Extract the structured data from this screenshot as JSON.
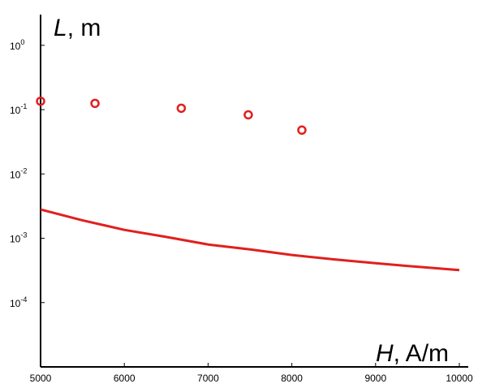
{
  "chart_data": {
    "type": "scatter",
    "title": "",
    "xlabel": {
      "var": "H",
      "unit": ", A/m"
    },
    "ylabel": {
      "var": "L",
      "unit": ", m"
    },
    "x_ticks": [
      "5000",
      "6000",
      "7000",
      "8000",
      "9000",
      "10000"
    ],
    "y_ticks": [
      {
        "value": 1,
        "base": "10",
        "exp": "0"
      },
      {
        "value": 0.1,
        "base": "10",
        "exp": "-1"
      },
      {
        "value": 0.01,
        "base": "10",
        "exp": "-2"
      },
      {
        "value": 0.001,
        "base": "10",
        "exp": "-3"
      },
      {
        "value": 0.0001,
        "base": "10",
        "exp": "-4"
      }
    ],
    "xlim": [
      5000,
      10000
    ],
    "ylim": [
      1e-05,
      3
    ],
    "yscale": "log",
    "grid": false,
    "colors": {
      "series": "#e0201e",
      "axis": "#000000"
    },
    "series": [
      {
        "kind": "scatter",
        "marker": "open-circle",
        "x": [
          5000,
          5650,
          6680,
          7480,
          8120
        ],
        "y": [
          0.135,
          0.125,
          0.105,
          0.083,
          0.048
        ]
      },
      {
        "kind": "line",
        "x": [
          5000,
          5500,
          6000,
          6500,
          7000,
          7500,
          8000,
          8500,
          9000,
          9500,
          10000
        ],
        "y": [
          0.0028,
          0.0019,
          0.00135,
          0.00105,
          0.0008,
          0.00067,
          0.00055,
          0.00047,
          0.00041,
          0.00036,
          0.00032
        ]
      }
    ]
  }
}
